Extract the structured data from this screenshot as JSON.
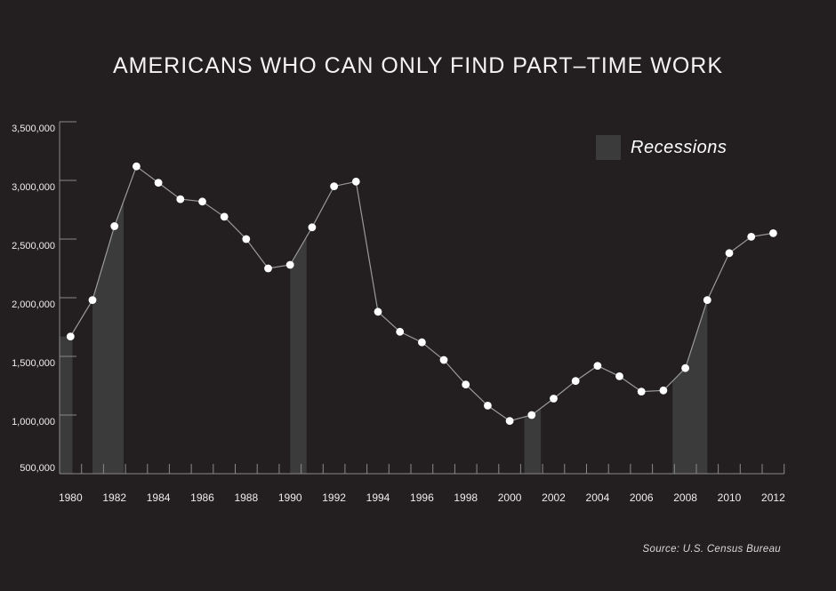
{
  "title": "AMERICANS WHO CAN ONLY FIND PART–TIME WORK",
  "legend": {
    "label": "Recessions"
  },
  "source": "Source: U.S. Census Bureau",
  "colors": {
    "background": "#231f20",
    "recession_band": "#3b3b3b",
    "line": "#9a9a9a",
    "point": "#ffffff",
    "axis": "#8a8a8a",
    "tick_label": "#efecec",
    "title_text": "#f5f3f3",
    "source_text": "#d9d6d6"
  },
  "chart_data": {
    "type": "line",
    "title": "AMERICANS WHO CAN ONLY FIND PART–TIME WORK",
    "series_name": "Americans who can only find part-time work",
    "x": [
      1980,
      1981,
      1982,
      1983,
      1984,
      1985,
      1986,
      1987,
      1988,
      1989,
      1990,
      1991,
      1992,
      1993,
      1994,
      1995,
      1996,
      1997,
      1998,
      1999,
      2000,
      2001,
      2002,
      2003,
      2004,
      2005,
      2006,
      2007,
      2008,
      2009,
      2010,
      2011,
      2012
    ],
    "values": [
      1670000,
      1980000,
      2610000,
      3120000,
      2980000,
      2840000,
      2820000,
      2690000,
      2500000,
      2250000,
      2280000,
      2600000,
      2950000,
      2990000,
      1880000,
      1710000,
      1620000,
      1470000,
      1260000,
      1080000,
      950000,
      1000000,
      1140000,
      1290000,
      1420000,
      1330000,
      1200000,
      1210000,
      1400000,
      1980000,
      2380000,
      2520000,
      2550000
    ],
    "ylim": [
      500000,
      3500000
    ],
    "ytick_values": [
      500000,
      1000000,
      1500000,
      2000000,
      2500000,
      3000000,
      3500000
    ],
    "ytick_labels": [
      "500,000",
      "1,000,000",
      "1,500,000",
      "2,000,000",
      "2,500,000",
      "3,000,000",
      "3,500,000"
    ],
    "xtick_labels": [
      "1980",
      "1982",
      "1984",
      "1986",
      "1988",
      "1990",
      "1992",
      "1994",
      "1996",
      "1998",
      "2000",
      "2002",
      "2004",
      "2006",
      "2008",
      "2010",
      "2012"
    ],
    "grid": false,
    "legend_entries": [
      "Recessions"
    ],
    "legend_position": "top-right",
    "recessions": [
      [
        1980.0,
        1980.583
      ],
      [
        1981.5,
        1982.917
      ],
      [
        1990.5,
        1991.25
      ],
      [
        2001.167,
        2001.917
      ],
      [
        2007.917,
        2009.5
      ]
    ]
  }
}
